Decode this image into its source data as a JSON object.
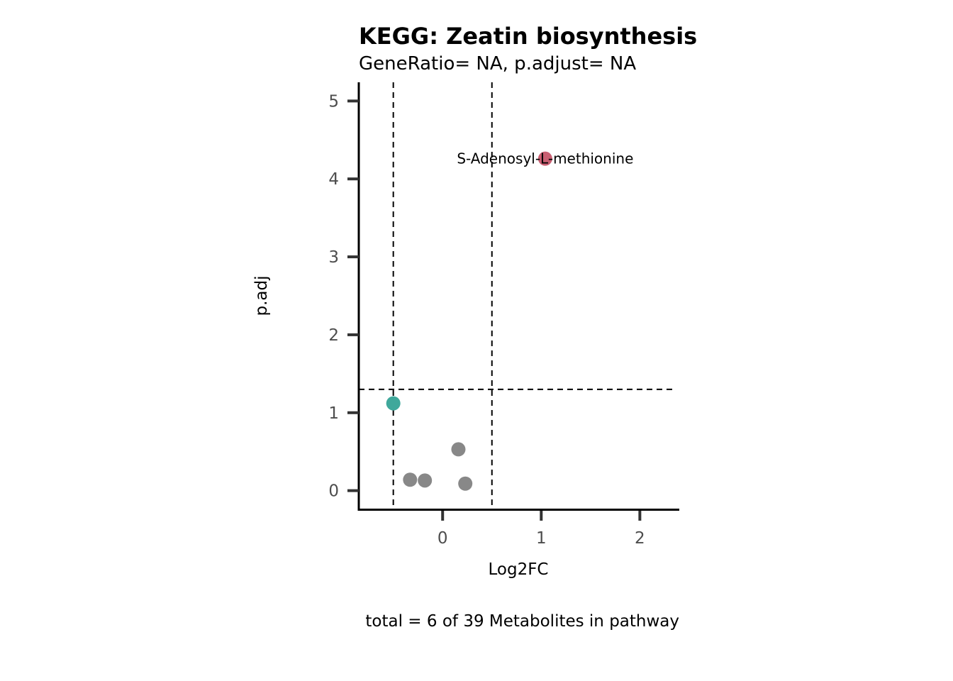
{
  "chart_data": {
    "type": "scatter",
    "title": "KEGG: Zeatin biosynthesis",
    "subtitle": "GeneRatio= NA, p.adjust= NA",
    "xlabel": "Log2FC",
    "ylabel": "p.adj",
    "caption": "total = 6 of 39 Metabolites in pathway",
    "xlim": [
      -0.85,
      2.4
    ],
    "ylim": [
      -0.24,
      5.24
    ],
    "xticks": [
      0,
      1,
      2
    ],
    "yticks": [
      0,
      1,
      2,
      3,
      4,
      5
    ],
    "grid": false,
    "thresholds": {
      "x": [
        -0.5,
        0.5
      ],
      "y": [
        1.3
      ]
    },
    "colors": {
      "up": "#c95f72",
      "down": "#3fa89b",
      "ns": "#888888"
    },
    "points": [
      {
        "x": 1.04,
        "y": 4.26,
        "group": "up",
        "label": "S-Adenosyl-L-methionine"
      },
      {
        "x": -0.5,
        "y": 1.12,
        "group": "down",
        "label": ""
      },
      {
        "x": 0.16,
        "y": 0.53,
        "group": "ns",
        "label": ""
      },
      {
        "x": -0.33,
        "y": 0.14,
        "group": "ns",
        "label": ""
      },
      {
        "x": -0.18,
        "y": 0.13,
        "group": "ns",
        "label": ""
      },
      {
        "x": 0.23,
        "y": 0.09,
        "group": "ns",
        "label": ""
      }
    ]
  }
}
